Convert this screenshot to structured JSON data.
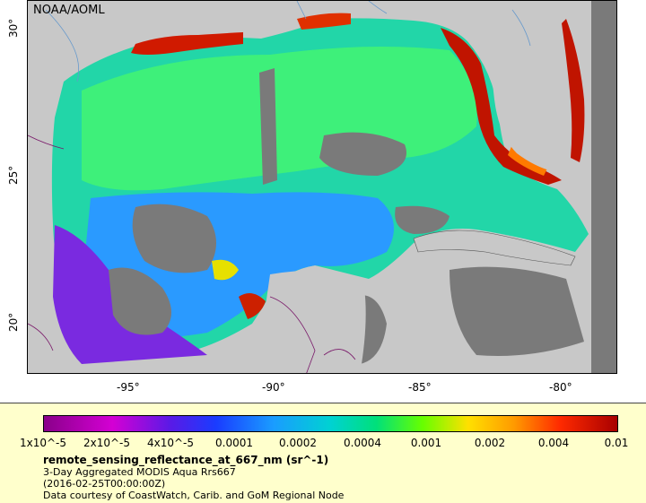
{
  "map": {
    "credit": "NOAA/AOML",
    "lat_ticks": [
      "30°",
      "25°",
      "20°"
    ],
    "lon_ticks": [
      "-95°",
      "-90°",
      "-85°",
      "-80°"
    ]
  },
  "legend": {
    "colorbar_labels": [
      "1x10^-5",
      "2x10^-5",
      "4x10^-5",
      "0.0001",
      "0.0002",
      "0.0004",
      "0.001",
      "0.002",
      "0.004",
      "0.01"
    ],
    "title": "remote_sensing_reflectance_at_667_nm (sr^-1)",
    "line1": "3-Day Aggregated MODIS Aqua Rrs667",
    "line2": "(2016-02-25T00:00:00Z)",
    "line3": "Data courtesy of CoastWatch, Carib. and GoM Regional Node"
  },
  "colors": {
    "land": "#c8c8c8",
    "nodata": "#7a7a7a",
    "legend_bg": "#ffffcc",
    "boundary": "#7a1a6a",
    "river": "#6699cc"
  }
}
